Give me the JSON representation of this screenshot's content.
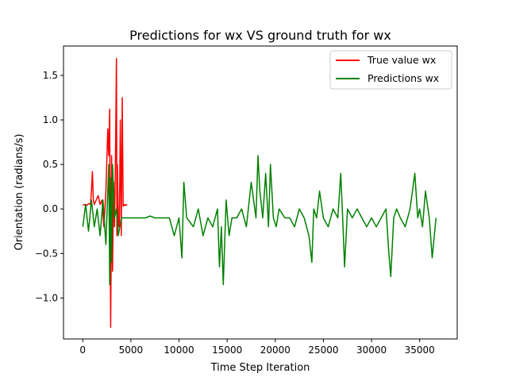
{
  "chart_data": {
    "type": "line",
    "title": "Predictions for wx VS ground truth for wx",
    "xlabel": "Time Step Iteration",
    "ylabel": "Orientation (radians/s)",
    "xlim": [
      -2000,
      38900
    ],
    "ylim": [
      -1.46,
      1.83
    ],
    "xticks": [
      0,
      5000,
      10000,
      15000,
      20000,
      25000,
      30000,
      35000
    ],
    "xtick_labels": [
      "0",
      "5000",
      "10000",
      "15000",
      "20000",
      "25000",
      "30000",
      "35000"
    ],
    "yticks": [
      -1.0,
      -0.5,
      0.0,
      0.5,
      1.0,
      1.5
    ],
    "ytick_labels": [
      "−1.0",
      "−0.5",
      "0.0",
      "0.5",
      "1.0",
      "1.5"
    ],
    "grid": false,
    "legend": {
      "placement": "top-right"
    },
    "series": [
      {
        "name": "True value wx",
        "color": "#ff0000",
        "x": [
          0,
          200,
          400,
          600,
          800,
          900,
          1000,
          1100,
          1200,
          1400,
          1600,
          1800,
          2000,
          2200,
          2400,
          2600,
          2700,
          2800,
          2850,
          2900,
          2950,
          3000,
          3100,
          3200,
          3300,
          3400,
          3500,
          3550,
          3600,
          3700,
          3800,
          3900,
          4000,
          4100,
          4200,
          4300,
          4400,
          4500,
          4600
        ],
        "y": [
          0.04,
          0.05,
          0.04,
          0.06,
          0.05,
          0.2,
          0.42,
          0.1,
          0.05,
          0.1,
          0.15,
          0.05,
          0.1,
          -0.2,
          0.2,
          0.9,
          0.6,
          1.12,
          -0.3,
          -1.33,
          -0.6,
          0.6,
          -0.7,
          0.3,
          -0.2,
          0.6,
          1.69,
          -0.3,
          0.5,
          -0.2,
          -0.2,
          1.0,
          -0.3,
          1.25,
          0.03,
          0.05,
          0.04,
          0.05,
          0.04
        ]
      },
      {
        "name": "Predictions wx",
        "color": "#008000",
        "x": [
          0,
          300,
          600,
          900,
          1200,
          1500,
          1800,
          2100,
          2400,
          2700,
          2800,
          2900,
          3000,
          3100,
          3300,
          3500,
          3700,
          4000,
          4300,
          4500,
          5000,
          5500,
          6000,
          6500,
          7000,
          7500,
          8000,
          8500,
          9000,
          9500,
          10000,
          10300,
          10500,
          10800,
          11500,
          12000,
          12500,
          13000,
          13500,
          14000,
          14200,
          14400,
          14600,
          14900,
          15200,
          15500,
          16000,
          16500,
          17000,
          17500,
          18000,
          18200,
          18400,
          18700,
          19000,
          19300,
          19500,
          19800,
          20100,
          20400,
          21000,
          21500,
          22000,
          22500,
          23000,
          23500,
          23800,
          24000,
          24300,
          24600,
          25000,
          25500,
          26000,
          26500,
          26800,
          27000,
          27200,
          27500,
          28000,
          28500,
          29000,
          29500,
          30000,
          30500,
          31000,
          31500,
          31800,
          32000,
          32300,
          32600,
          33000,
          33500,
          34000,
          34500,
          34800,
          35000,
          35300,
          35600,
          36000,
          36300,
          36700
        ],
        "y": [
          -0.2,
          0.05,
          -0.25,
          0.1,
          -0.2,
          0.0,
          -0.3,
          0.1,
          -0.4,
          0.5,
          -0.85,
          0.35,
          -0.6,
          0.5,
          -0.1,
          0.0,
          -0.3,
          -0.1,
          -0.1,
          -0.1,
          -0.1,
          -0.1,
          -0.1,
          -0.1,
          -0.08,
          -0.1,
          -0.1,
          -0.1,
          -0.1,
          -0.3,
          -0.1,
          -0.55,
          0.3,
          -0.1,
          -0.2,
          0.0,
          -0.3,
          -0.1,
          -0.2,
          0.0,
          -0.65,
          -0.2,
          -0.85,
          0.1,
          -0.3,
          -0.1,
          -0.1,
          0.0,
          -0.2,
          0.3,
          -0.1,
          0.6,
          0.2,
          -0.1,
          0.4,
          -0.2,
          0.5,
          -0.1,
          -0.2,
          0.0,
          -0.1,
          -0.1,
          -0.2,
          0.0,
          -0.1,
          -0.3,
          -0.6,
          0.0,
          -0.1,
          0.2,
          -0.1,
          -0.2,
          0.0,
          -0.1,
          0.4,
          -0.1,
          -0.65,
          0.0,
          -0.1,
          0.0,
          -0.1,
          -0.2,
          -0.1,
          -0.2,
          -0.1,
          0.0,
          -0.5,
          -0.76,
          -0.1,
          0.0,
          -0.1,
          -0.2,
          0.0,
          0.4,
          -0.1,
          0.0,
          -0.2,
          0.2,
          -0.1,
          -0.55,
          -0.1
        ]
      }
    ]
  }
}
